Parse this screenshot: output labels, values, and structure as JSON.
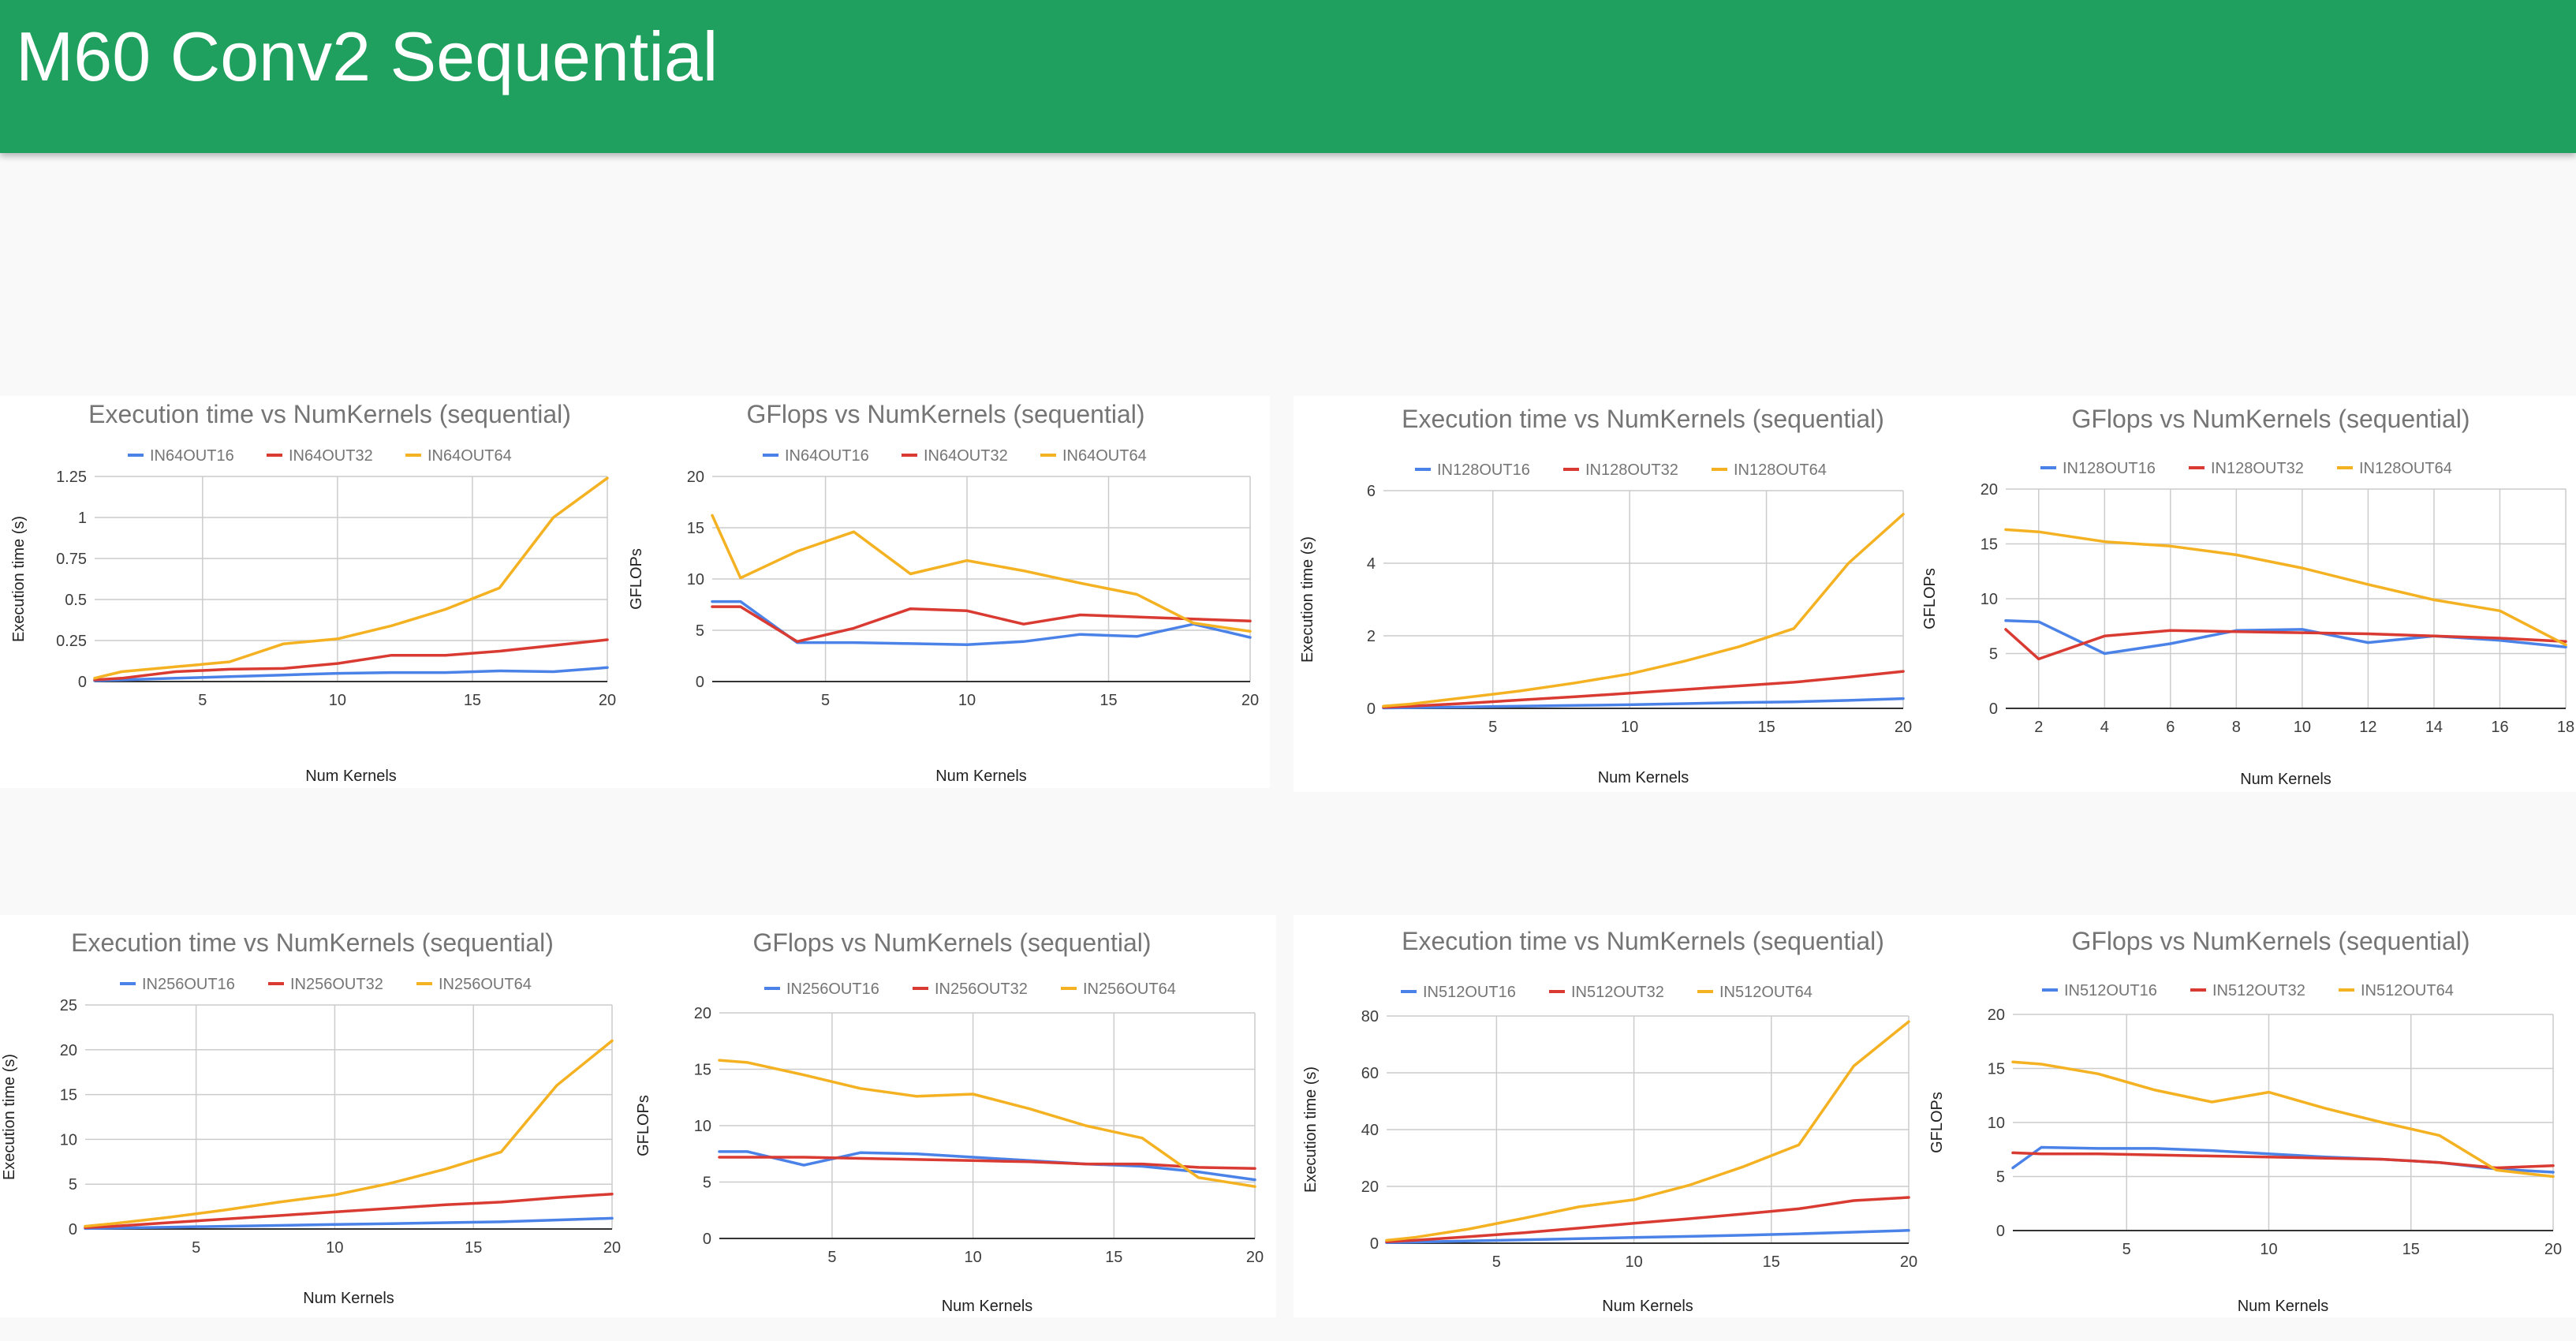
{
  "page": {
    "title": "M60 Conv2 Sequential"
  },
  "colors": {
    "header": "#1fa05e",
    "series": [
      "#4a82e8",
      "#d93a32",
      "#f4b223"
    ]
  },
  "chart_data": [
    {
      "type": "line",
      "title": "Execution time vs NumKernels (sequential)",
      "xlabel": "Num Kernels",
      "ylabel": "Execution time (s)",
      "xlim": [
        1,
        20
      ],
      "xticks": [
        5,
        10,
        15,
        20
      ],
      "ylim": [
        0,
        1.25
      ],
      "yticks": [
        "0",
        "0.25",
        "0.5",
        "0.75",
        "1",
        "1.25"
      ],
      "x": [
        1,
        2,
        4,
        6,
        8,
        10,
        12,
        14,
        16,
        18,
        20
      ],
      "series": [
        {
          "name": "IN64OUT16",
          "values": [
            0.005,
            0.01,
            0.02,
            0.03,
            0.04,
            0.05,
            0.055,
            0.055,
            0.065,
            0.06,
            0.085
          ]
        },
        {
          "name": "IN64OUT32",
          "values": [
            0.01,
            0.02,
            0.06,
            0.075,
            0.08,
            0.11,
            0.16,
            0.16,
            0.185,
            0.22,
            0.255
          ]
        },
        {
          "name": "IN64OUT64",
          "values": [
            0.02,
            0.06,
            0.09,
            0.12,
            0.23,
            0.26,
            0.34,
            0.44,
            0.57,
            1.0,
            1.24
          ]
        }
      ]
    },
    {
      "type": "line",
      "title": "GFlops vs NumKernels (sequential)",
      "xlabel": "Num Kernels",
      "ylabel": "GFLOPs",
      "xlim": [
        1,
        20
      ],
      "xticks": [
        5,
        10,
        15,
        20
      ],
      "ylim": [
        0,
        20
      ],
      "yticks": [
        "0",
        "5",
        "10",
        "15",
        "20"
      ],
      "x": [
        1,
        2,
        4,
        6,
        8,
        10,
        12,
        14,
        16,
        18,
        20
      ],
      "series": [
        {
          "name": "IN64OUT16",
          "values": [
            7.8,
            7.8,
            3.8,
            3.8,
            3.7,
            3.6,
            3.9,
            4.6,
            4.4,
            5.6,
            4.3
          ]
        },
        {
          "name": "IN64OUT32",
          "values": [
            7.3,
            7.3,
            3.9,
            5.2,
            7.1,
            6.9,
            5.6,
            6.5,
            6.3,
            6.1,
            5.9
          ]
        },
        {
          "name": "IN64OUT64",
          "values": [
            16.2,
            10.1,
            12.7,
            14.6,
            10.5,
            11.8,
            10.8,
            9.6,
            8.5,
            5.7,
            4.9
          ]
        }
      ]
    },
    {
      "type": "line",
      "title": "Execution time vs NumKernels (sequential)",
      "xlabel": "Num Kernels",
      "ylabel": "Execution time (s)",
      "xlim": [
        1,
        20
      ],
      "xticks": [
        5,
        10,
        15,
        20
      ],
      "ylim": [
        0,
        6
      ],
      "yticks": [
        "0",
        "2",
        "4",
        "6"
      ],
      "x": [
        1,
        2,
        4,
        6,
        8,
        10,
        12,
        14,
        16,
        18,
        20
      ],
      "series": [
        {
          "name": "IN128OUT16",
          "values": [
            0.01,
            0.02,
            0.04,
            0.06,
            0.08,
            0.1,
            0.13,
            0.16,
            0.18,
            0.22,
            0.27
          ]
        },
        {
          "name": "IN128OUT32",
          "values": [
            0.03,
            0.06,
            0.14,
            0.23,
            0.32,
            0.42,
            0.52,
            0.62,
            0.72,
            0.86,
            1.02
          ]
        },
        {
          "name": "IN128OUT64",
          "values": [
            0.06,
            0.12,
            0.3,
            0.48,
            0.7,
            0.95,
            1.3,
            1.7,
            2.2,
            4.0,
            5.35
          ]
        }
      ]
    },
    {
      "type": "line",
      "title": "GFlops vs NumKernels (sequential)",
      "xlabel": "Num Kernels",
      "ylabel": "GFLOPs",
      "xlim": [
        1,
        18
      ],
      "xticks": [
        2,
        4,
        6,
        8,
        10,
        12,
        14,
        16,
        18
      ],
      "ylim": [
        0,
        20
      ],
      "yticks": [
        "0",
        "5",
        "10",
        "15",
        "20"
      ],
      "x": [
        1,
        2,
        4,
        6,
        8,
        10,
        12,
        14,
        16,
        18
      ],
      "series": [
        {
          "name": "IN128OUT16",
          "values": [
            8.0,
            7.9,
            5.0,
            5.9,
            7.1,
            7.2,
            6.0,
            6.6,
            6.2,
            5.6
          ]
        },
        {
          "name": "IN128OUT32",
          "values": [
            7.2,
            4.5,
            6.6,
            7.1,
            7.0,
            6.9,
            6.8,
            6.6,
            6.4,
            6.1
          ]
        },
        {
          "name": "IN128OUT64",
          "values": [
            16.3,
            16.1,
            15.2,
            14.8,
            14.0,
            12.8,
            11.3,
            9.9,
            8.9,
            5.8
          ]
        }
      ]
    },
    {
      "type": "line",
      "title": "Execution time vs NumKernels (sequential)",
      "xlabel": "Num Kernels",
      "ylabel": "Execution time (s)",
      "xlim": [
        1,
        20
      ],
      "xticks": [
        5,
        10,
        15,
        20
      ],
      "ylim": [
        0,
        25
      ],
      "yticks": [
        "0",
        "5",
        "10",
        "15",
        "20",
        "25"
      ],
      "x": [
        1,
        2,
        4,
        6,
        8,
        10,
        12,
        14,
        16,
        18,
        20
      ],
      "series": [
        {
          "name": "IN256OUT16",
          "values": [
            0.05,
            0.1,
            0.2,
            0.3,
            0.4,
            0.5,
            0.6,
            0.7,
            0.8,
            1.0,
            1.2
          ]
        },
        {
          "name": "IN256OUT32",
          "values": [
            0.15,
            0.3,
            0.7,
            1.1,
            1.5,
            1.9,
            2.3,
            2.7,
            3.0,
            3.5,
            3.9
          ]
        },
        {
          "name": "IN256OUT64",
          "values": [
            0.3,
            0.6,
            1.3,
            2.1,
            3.0,
            3.8,
            5.1,
            6.7,
            8.6,
            16.0,
            21.0
          ]
        }
      ]
    },
    {
      "type": "line",
      "title": "GFlops vs NumKernels (sequential)",
      "xlabel": "Num Kernels",
      "ylabel": "GFLOPs",
      "xlim": [
        1,
        20
      ],
      "xticks": [
        5,
        10,
        15,
        20
      ],
      "ylim": [
        0,
        20
      ],
      "yticks": [
        "0",
        "5",
        "10",
        "15",
        "20"
      ],
      "x": [
        1,
        2,
        4,
        6,
        8,
        10,
        12,
        14,
        16,
        18,
        20
      ],
      "series": [
        {
          "name": "IN256OUT16",
          "values": [
            7.7,
            7.7,
            6.5,
            7.6,
            7.5,
            7.2,
            6.9,
            6.6,
            6.4,
            5.9,
            5.2
          ]
        },
        {
          "name": "IN256OUT32",
          "values": [
            7.2,
            7.2,
            7.2,
            7.1,
            7.0,
            6.9,
            6.8,
            6.6,
            6.6,
            6.3,
            6.2
          ]
        },
        {
          "name": "IN256OUT64",
          "values": [
            15.8,
            15.6,
            14.5,
            13.3,
            12.6,
            12.8,
            11.5,
            10.0,
            8.9,
            5.4,
            4.6
          ]
        }
      ]
    },
    {
      "type": "line",
      "title": "Execution time vs NumKernels (sequential)",
      "xlabel": "Num Kernels",
      "ylabel": "Execution time (s)",
      "xlim": [
        1,
        20
      ],
      "xticks": [
        5,
        10,
        15,
        20
      ],
      "ylim": [
        0,
        80
      ],
      "yticks": [
        "0",
        "20",
        "40",
        "60",
        "80"
      ],
      "x": [
        1,
        2,
        4,
        6,
        8,
        10,
        12,
        14,
        16,
        18,
        20
      ],
      "series": [
        {
          "name": "IN512OUT16",
          "values": [
            0.2,
            0.4,
            0.8,
            1.2,
            1.6,
            2.0,
            2.4,
            2.8,
            3.3,
            3.9,
            4.5
          ]
        },
        {
          "name": "IN512OUT32",
          "values": [
            0.5,
            1.0,
            2.3,
            3.7,
            5.3,
            7.0,
            8.6,
            10.3,
            12.1,
            15.0,
            16.1
          ]
        },
        {
          "name": "IN512OUT64",
          "values": [
            1.0,
            2.0,
            5.0,
            8.8,
            12.8,
            15.3,
            20.4,
            27.0,
            34.6,
            62.4,
            78.0
          ]
        }
      ]
    },
    {
      "type": "line",
      "title": "GFlops vs NumKernels (sequential)",
      "xlabel": "Num Kernels",
      "ylabel": "GFLOPs",
      "xlim": [
        1,
        20
      ],
      "xticks": [
        5,
        10,
        15,
        20
      ],
      "ylim": [
        0,
        20
      ],
      "yticks": [
        "0",
        "5",
        "10",
        "15",
        "20"
      ],
      "x": [
        1,
        2,
        4,
        6,
        8,
        10,
        12,
        14,
        16,
        18,
        20
      ],
      "series": [
        {
          "name": "IN512OUT16",
          "values": [
            5.8,
            7.7,
            7.6,
            7.6,
            7.4,
            7.1,
            6.8,
            6.6,
            6.3,
            5.7,
            5.4
          ]
        },
        {
          "name": "IN512OUT32",
          "values": [
            7.2,
            7.1,
            7.1,
            7.0,
            6.9,
            6.8,
            6.7,
            6.6,
            6.3,
            5.8,
            6.0
          ]
        },
        {
          "name": "IN512OUT64",
          "values": [
            15.6,
            15.4,
            14.5,
            13.0,
            11.9,
            12.8,
            11.3,
            10.0,
            8.8,
            5.6,
            5.0
          ]
        }
      ]
    }
  ]
}
